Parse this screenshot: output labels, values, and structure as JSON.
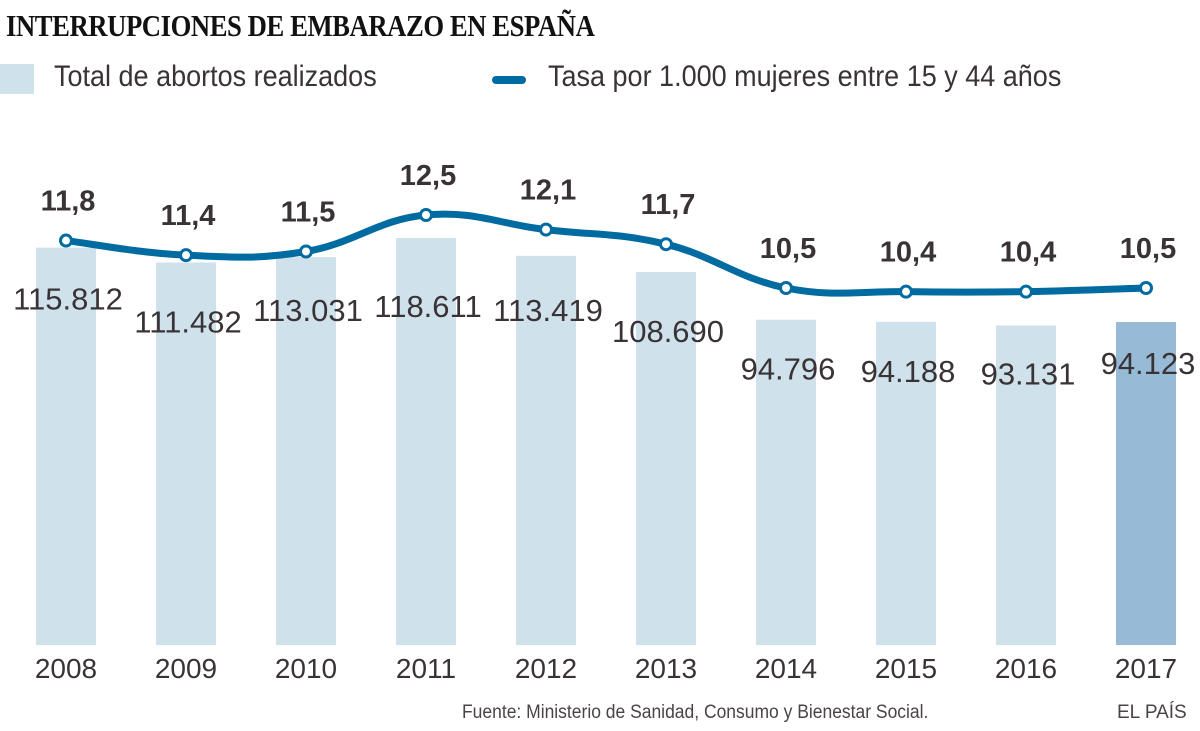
{
  "title": "INTERRUPCIONES DE EMBARAZO EN ESPAÑA",
  "legend": {
    "bars_label": "Total de abortos realizados",
    "line_label": "Tasa por 1.000 mujeres entre 15 y 44 años"
  },
  "colors": {
    "bar": "#cfe2ec",
    "bar_highlight": "#97bbd6",
    "line": "#006ba0",
    "marker_fill": "#ffffff",
    "text": "#3a3336"
  },
  "source": "Fuente: Ministerio de Sanidad, Consumo y Bienestar Social.",
  "brand": "EL PAÍS",
  "chart_data": {
    "type": "bar",
    "title": "INTERRUPCIONES DE EMBARAZO EN ESPAÑA",
    "xlabel": "",
    "ylabel": "",
    "grid": false,
    "legend_position": "top-left",
    "categories": [
      "2008",
      "2009",
      "2010",
      "2011",
      "2012",
      "2013",
      "2014",
      "2015",
      "2016",
      "2017"
    ],
    "highlight_category": "2017",
    "series": [
      {
        "name": "Total de abortos realizados",
        "type": "bar",
        "values": [
          115812,
          111482,
          113031,
          118611,
          113419,
          108690,
          94796,
          94188,
          93131,
          94123
        ],
        "labels": [
          "115.812",
          "111.482",
          "113.031",
          "118.611",
          "113.419",
          "108.690",
          "94.796",
          "94.188",
          "93.131",
          "94.123"
        ],
        "ylim": [
          0,
          118611
        ]
      },
      {
        "name": "Tasa por 1.000 mujeres entre 15 y 44 años",
        "type": "line",
        "values": [
          11.8,
          11.4,
          11.5,
          12.5,
          12.1,
          11.7,
          10.5,
          10.4,
          10.4,
          10.5
        ],
        "labels": [
          "11,8",
          "11,4",
          "11,5",
          "12,5",
          "12,1",
          "11,7",
          "10,5",
          "10,4",
          "10,4",
          "10,5"
        ]
      }
    ]
  }
}
